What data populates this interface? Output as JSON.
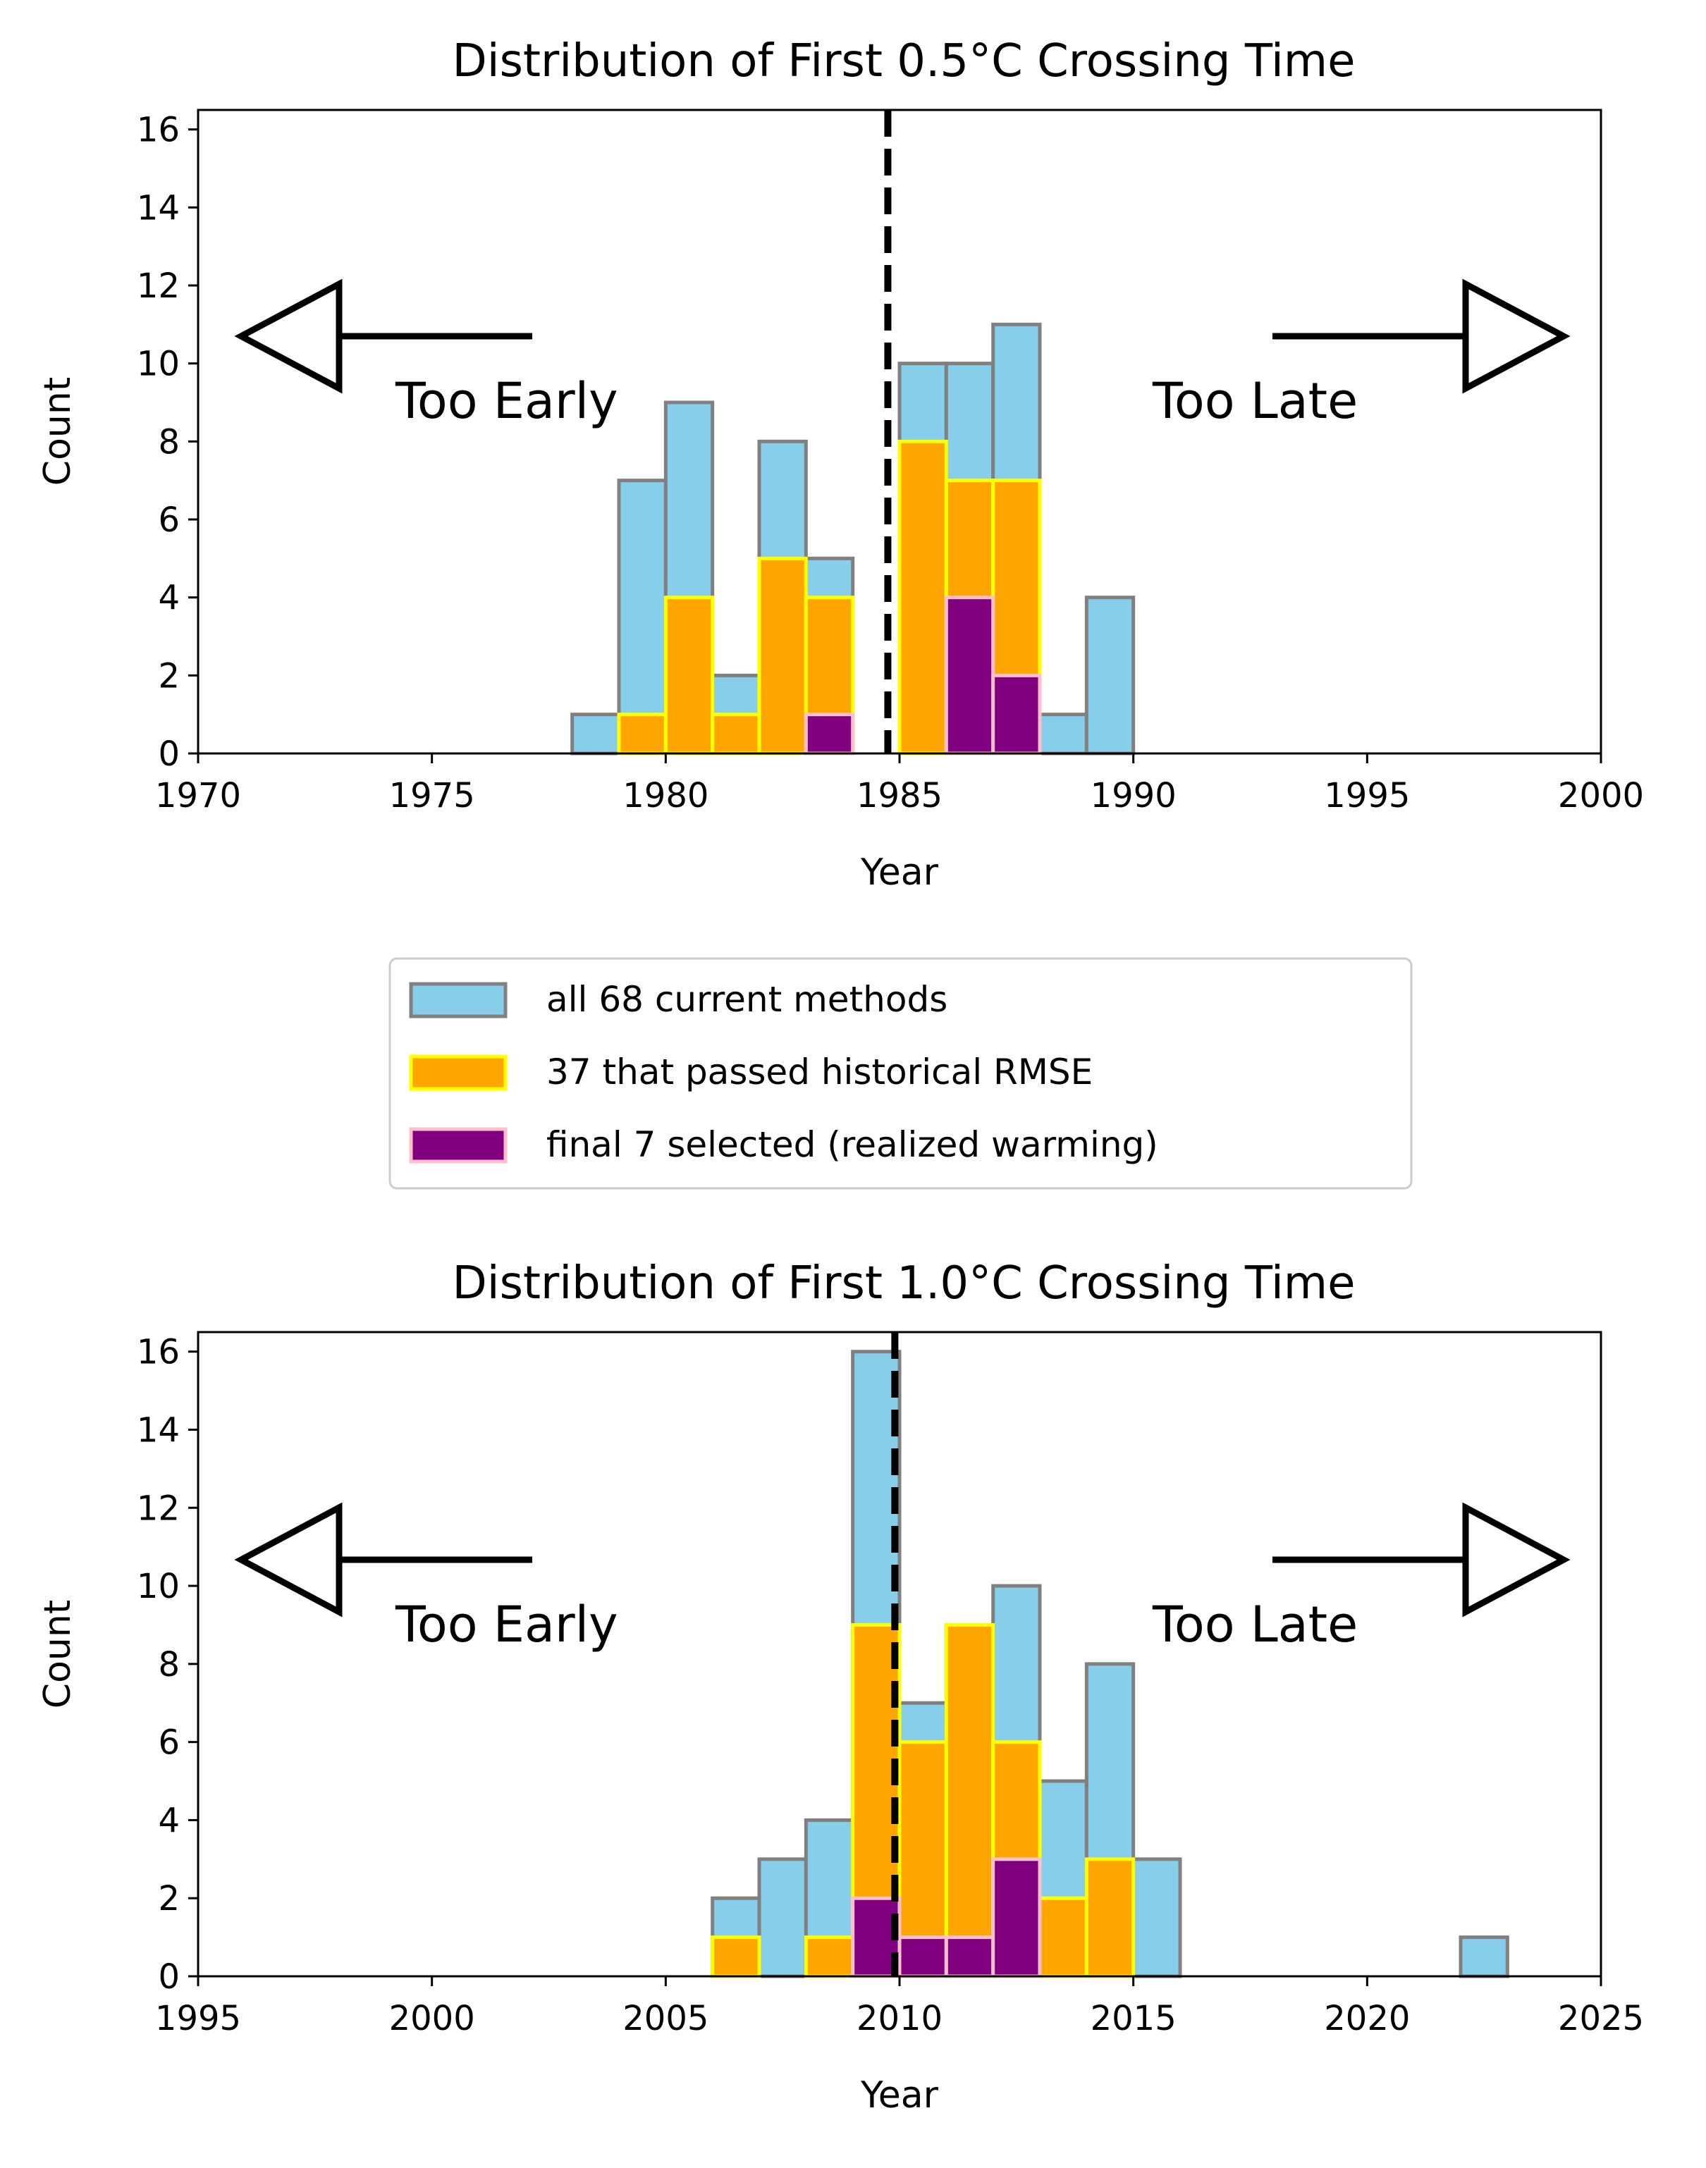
{
  "chart_data": [
    {
      "type": "bar",
      "title": "Distribution of First 0.5°C Crossing Time",
      "xlabel": "Year",
      "ylabel": "Count",
      "xlim": [
        1970,
        2000
      ],
      "ylim": [
        0,
        16.5
      ],
      "xticks": [
        "1970",
        "1975",
        "1980",
        "1985",
        "1990",
        "1995",
        "2000"
      ],
      "yticks": [
        "0",
        "2",
        "4",
        "6",
        "8",
        "10",
        "12",
        "14",
        "16"
      ],
      "bin_width": 1,
      "grid": false,
      "threshold_year": 1984.75,
      "annotations": [
        "Too Early",
        "Too Late"
      ],
      "series": [
        {
          "name": "all 68 current methods",
          "color": "#87CEEB",
          "edge": "#808080",
          "bins": [
            [
              1978,
              1
            ],
            [
              1979,
              7
            ],
            [
              1980,
              9
            ],
            [
              1981,
              2
            ],
            [
              1982,
              8
            ],
            [
              1983,
              5
            ],
            [
              1985,
              10
            ],
            [
              1986,
              10
            ],
            [
              1987,
              11
            ],
            [
              1988,
              1
            ],
            [
              1989,
              4
            ]
          ]
        },
        {
          "name": "37 that passed historical RMSE",
          "color": "#FFA500",
          "edge": "#FFFF00",
          "bins": [
            [
              1979,
              1
            ],
            [
              1980,
              4
            ],
            [
              1981,
              1
            ],
            [
              1982,
              5
            ],
            [
              1983,
              4
            ],
            [
              1985,
              8
            ],
            [
              1986,
              7
            ],
            [
              1987,
              7
            ]
          ]
        },
        {
          "name": "final 7 selected (realized warming)",
          "color": "#800080",
          "edge": "#FFC0CB",
          "bins": [
            [
              1983,
              1
            ],
            [
              1986,
              4
            ],
            [
              1987,
              2
            ]
          ]
        }
      ]
    },
    {
      "type": "bar",
      "title": "Distribution of First 1.0°C Crossing Time",
      "xlabel": "Year",
      "ylabel": "Count",
      "xlim": [
        1995,
        2025
      ],
      "ylim": [
        0,
        16.5
      ],
      "xticks": [
        "1995",
        "2000",
        "2005",
        "2010",
        "2015",
        "2020",
        "2025"
      ],
      "yticks": [
        "0",
        "2",
        "4",
        "6",
        "8",
        "10",
        "12",
        "14",
        "16"
      ],
      "bin_width": 1,
      "grid": false,
      "threshold_year": 2009.9,
      "annotations": [
        "Too Early",
        "Too Late"
      ],
      "series": [
        {
          "name": "all 68 current methods",
          "color": "#87CEEB",
          "edge": "#808080",
          "bins": [
            [
              2006,
              2
            ],
            [
              2007,
              3
            ],
            [
              2008,
              4
            ],
            [
              2009,
              16
            ],
            [
              2010,
              7
            ],
            [
              2011,
              9
            ],
            [
              2012,
              10
            ],
            [
              2013,
              5
            ],
            [
              2014,
              8
            ],
            [
              2015,
              3
            ],
            [
              2022,
              1
            ]
          ]
        },
        {
          "name": "37 that passed historical RMSE",
          "color": "#FFA500",
          "edge": "#FFFF00",
          "bins": [
            [
              2006,
              1
            ],
            [
              2008,
              1
            ],
            [
              2009,
              9
            ],
            [
              2010,
              6
            ],
            [
              2011,
              9
            ],
            [
              2012,
              6
            ],
            [
              2013,
              2
            ],
            [
              2014,
              3
            ]
          ]
        },
        {
          "name": "final 7 selected (realized warming)",
          "color": "#800080",
          "edge": "#FFC0CB",
          "bins": [
            [
              2009,
              2
            ],
            [
              2010,
              1
            ],
            [
              2011,
              1
            ],
            [
              2012,
              3
            ]
          ]
        }
      ]
    }
  ],
  "legend": {
    "placement": "between-panels",
    "items": [
      {
        "label": "all 68 current methods",
        "color": "#87CEEB",
        "edge": "#808080"
      },
      {
        "label": "37 that passed historical RMSE",
        "color": "#FFA500",
        "edge": "#FFFF00"
      },
      {
        "label": "final 7 selected (realized warming)",
        "color": "#800080",
        "edge": "#FFC0CB"
      }
    ]
  }
}
